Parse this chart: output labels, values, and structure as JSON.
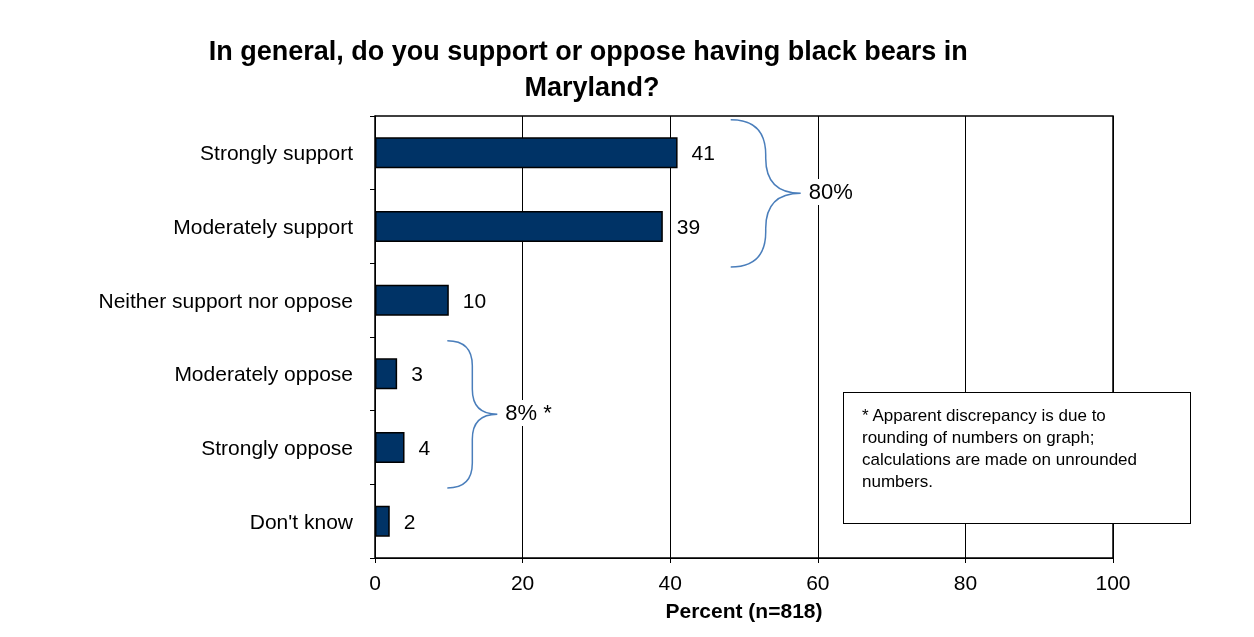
{
  "chart_data": {
    "type": "bar",
    "orientation": "horizontal",
    "title": "In general, do you support or oppose having black bears in Maryland?",
    "xlabel": "Percent (n=818)",
    "categories": [
      "Strongly support",
      "Moderately support",
      "Neither support nor oppose",
      "Moderately oppose",
      "Strongly oppose",
      "Don't know"
    ],
    "values": [
      41,
      39,
      10,
      3,
      4,
      2
    ],
    "color": "#003366",
    "data_labels": true,
    "xlim": [
      0,
      100
    ],
    "xticks": [
      0,
      20,
      40,
      60,
      80,
      100
    ],
    "grid": "x",
    "annotations": [
      "80%",
      "8% *",
      "* Apparent discrepancy is due to rounding of numbers on graph; calculations are made on unrounded numbers."
    ]
  }
}
